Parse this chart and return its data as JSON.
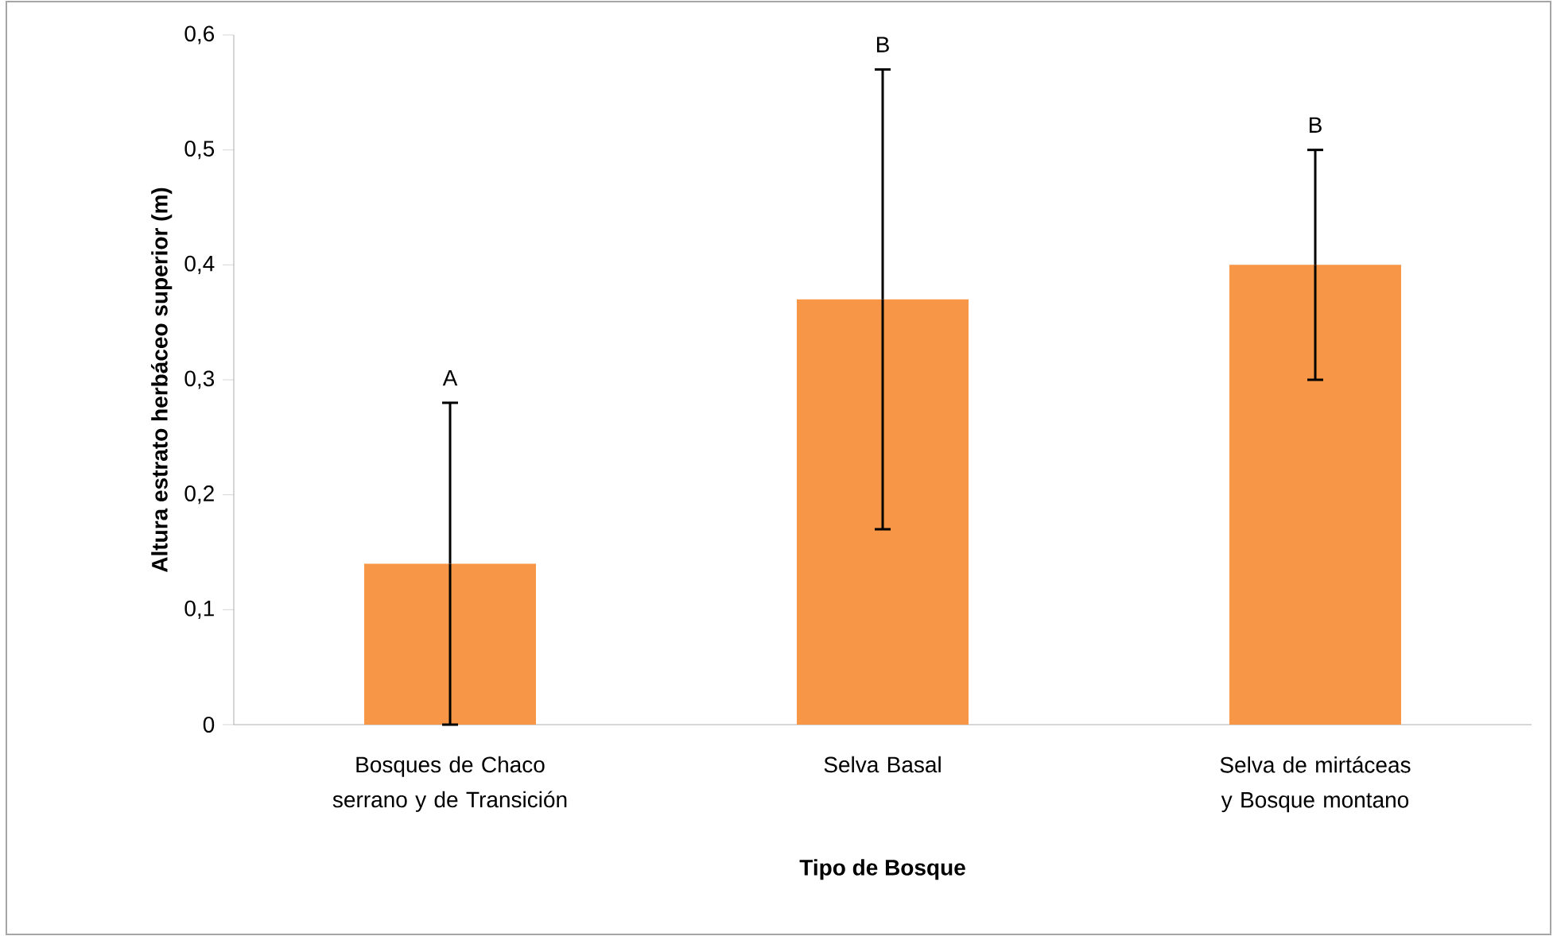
{
  "chart_data": {
    "type": "bar",
    "xlabel": "Tipo de Bosque",
    "ylabel": "Altura estrato herbáceo superior (m)",
    "categories": [
      "Bosques de Chaco serrano y de Transición",
      "Selva Basal",
      "Selva de mirtáceas y Bosque montano"
    ],
    "values": [
      0.14,
      0.37,
      0.4
    ],
    "errors": [
      0.14,
      0.2,
      0.1
    ],
    "color": "#f79646",
    "ylim": [
      0,
      0.6
    ],
    "yticks": [
      {
        "value": 0,
        "label": "0"
      },
      {
        "value": 0.1,
        "label": "0,1"
      },
      {
        "value": 0.2,
        "label": "0,2"
      },
      {
        "value": 0.3,
        "label": "0,3"
      },
      {
        "value": 0.4,
        "label": "0,4"
      },
      {
        "value": 0.5,
        "label": "0,5"
      },
      {
        "value": 0.6,
        "label": "0,6"
      }
    ],
    "grid": false,
    "annotations": [
      {
        "text": "A",
        "x": "Bosques de Chaco serrano y de Transición",
        "y": 0.28
      },
      {
        "text": "B",
        "x": "Selva Basal",
        "y": 0.57
      },
      {
        "text": "B",
        "x": "Selva de mirtáceas y Bosque montano",
        "y": 0.5
      }
    ]
  }
}
